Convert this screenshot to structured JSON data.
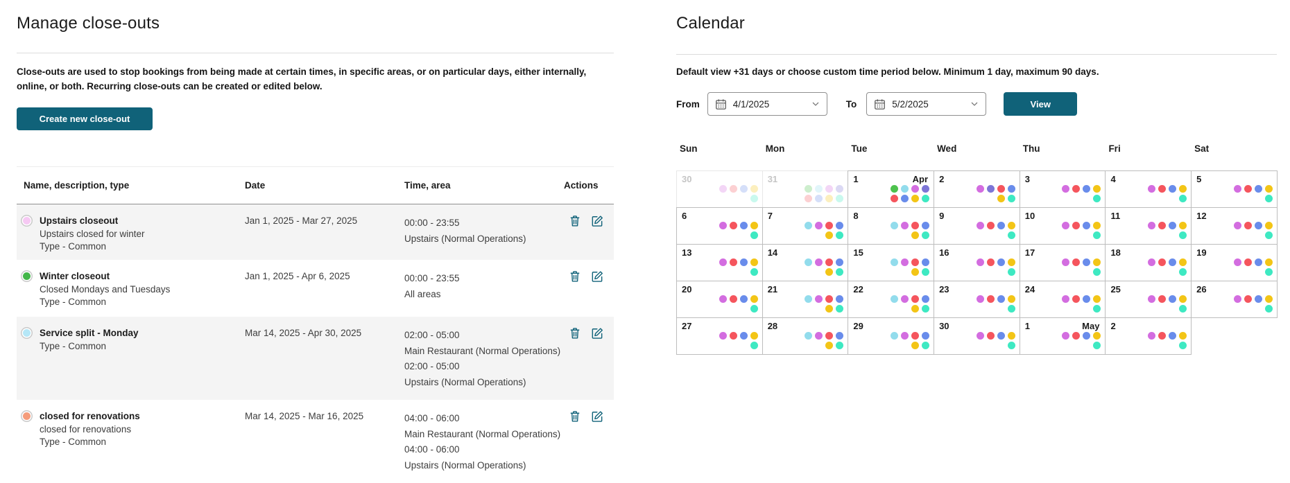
{
  "colors": {
    "accent_teal": "#106279",
    "row_stripe_gray": "#f4f4f4"
  },
  "left_panel": {
    "title": "Manage close-outs",
    "description": "Close-outs are used to stop bookings from being made at certain times, in specific areas, or on particular days, either internally, online, or both. Recurring close-outs can be created or edited below.",
    "create_button_label": "Create new close-out",
    "table": {
      "headers": [
        "Name, description, type",
        "Date",
        "Time, area",
        "Actions"
      ],
      "rows": [
        {
          "swatch_color": "#f6c9f3",
          "name": "Upstairs closeout",
          "description": "Upstairs closed for winter",
          "type": "Type - Common",
          "date": "Jan 1, 2025 - Mar 27, 2025",
          "times": [
            "00:00 - 23:55",
            "Upstairs (Normal Operations)"
          ]
        },
        {
          "swatch_color": "#43b649",
          "name": "Winter closeout",
          "description": "Closed Mondays and Tuesdays",
          "type": "Type - Common",
          "date": "Jan 1, 2025 - Apr 6, 2025",
          "times": [
            "00:00 - 23:55",
            "All areas"
          ]
        },
        {
          "swatch_color": "#b5e7f7",
          "name": "Service split - Monday",
          "description": "",
          "type": "Type - Common",
          "date": "Mar 14, 2025 - Apr 30, 2025",
          "times": [
            "02:00 - 05:00",
            "Main Restaurant (Normal Operations)",
            "02:00 - 05:00",
            "Upstairs (Normal Operations)"
          ]
        },
        {
          "swatch_color": "#f59c7b",
          "name": "closed for renovations",
          "description": "closed for renovations",
          "type": "Type - Common",
          "date": "Mar 14, 2025 - Mar 16, 2025",
          "times": [
            "04:00 - 06:00",
            "Main Restaurant (Normal Operations)",
            "04:00 - 06:00",
            "Upstairs (Normal Operations)"
          ]
        }
      ],
      "action_icons": [
        "delete",
        "edit"
      ]
    }
  },
  "calendar_panel": {
    "title": "Calendar",
    "description": "Default view +31 days or choose custom time period below. Minimum 1 day, maximum 90 days.",
    "from_label": "From",
    "from_value": "4/1/2025",
    "to_label": "To",
    "to_value": "5/2/2025",
    "view_button_label": "View",
    "weekdays": [
      "Sun",
      "Mon",
      "Tue",
      "Wed",
      "Thu",
      "Fri",
      "Sat"
    ],
    "dot_colors": {
      "green": "#4dc24d",
      "cyan": "#92dcec",
      "magenta": "#d36de0",
      "purple": "#7d75d6",
      "red": "#f5555d",
      "blue": "#698ceb",
      "yellow": "#f3c516",
      "teal": "#3ee9c2"
    },
    "weeks": [
      [
        {
          "day": "30",
          "faded": true,
          "dots": [
            [
              "magenta",
              "red",
              "blue",
              "yellow"
            ],
            [
              "teal"
            ]
          ]
        },
        {
          "day": "31",
          "faded": true,
          "dots": [
            [
              "green",
              "cyan",
              "magenta",
              "purple"
            ],
            [
              "red",
              "blue",
              "yellow",
              "teal"
            ]
          ]
        },
        {
          "day": "1",
          "month": "Apr",
          "dots": [
            [
              "green",
              "cyan",
              "magenta",
              "purple"
            ],
            [
              "red",
              "blue",
              "yellow",
              "teal"
            ]
          ]
        },
        {
          "day": "2",
          "dots": [
            [
              "magenta",
              "purple",
              "red",
              "blue"
            ],
            [
              "yellow",
              "teal"
            ]
          ]
        },
        {
          "day": "3",
          "dots": [
            [
              "magenta",
              "red",
              "blue",
              "yellow"
            ],
            [
              "teal"
            ]
          ]
        },
        {
          "day": "4",
          "dots": [
            [
              "magenta",
              "red",
              "blue",
              "yellow"
            ],
            [
              "teal"
            ]
          ]
        },
        {
          "day": "5",
          "dots": [
            [
              "magenta",
              "red",
              "blue",
              "yellow"
            ],
            [
              "teal"
            ]
          ]
        }
      ],
      [
        {
          "day": "6",
          "dots": [
            [
              "magenta",
              "red",
              "blue",
              "yellow"
            ],
            [
              "teal"
            ]
          ]
        },
        {
          "day": "7",
          "dots": [
            [
              "cyan",
              "magenta",
              "red",
              "blue"
            ],
            [
              "yellow",
              "teal"
            ]
          ]
        },
        {
          "day": "8",
          "dots": [
            [
              "cyan",
              "magenta",
              "red",
              "blue"
            ],
            [
              "yellow",
              "teal"
            ]
          ]
        },
        {
          "day": "9",
          "dots": [
            [
              "magenta",
              "red",
              "blue",
              "yellow"
            ],
            [
              "teal"
            ]
          ]
        },
        {
          "day": "10",
          "dots": [
            [
              "magenta",
              "red",
              "blue",
              "yellow"
            ],
            [
              "teal"
            ]
          ]
        },
        {
          "day": "11",
          "dots": [
            [
              "magenta",
              "red",
              "blue",
              "yellow"
            ],
            [
              "teal"
            ]
          ]
        },
        {
          "day": "12",
          "dots": [
            [
              "magenta",
              "red",
              "blue",
              "yellow"
            ],
            [
              "teal"
            ]
          ]
        }
      ],
      [
        {
          "day": "13",
          "dots": [
            [
              "magenta",
              "red",
              "blue",
              "yellow"
            ],
            [
              "teal"
            ]
          ]
        },
        {
          "day": "14",
          "dots": [
            [
              "cyan",
              "magenta",
              "red",
              "blue"
            ],
            [
              "yellow",
              "teal"
            ]
          ]
        },
        {
          "day": "15",
          "dots": [
            [
              "cyan",
              "magenta",
              "red",
              "blue"
            ],
            [
              "yellow",
              "teal"
            ]
          ]
        },
        {
          "day": "16",
          "dots": [
            [
              "magenta",
              "red",
              "blue",
              "yellow"
            ],
            [
              "teal"
            ]
          ]
        },
        {
          "day": "17",
          "dots": [
            [
              "magenta",
              "red",
              "blue",
              "yellow"
            ],
            [
              "teal"
            ]
          ]
        },
        {
          "day": "18",
          "dots": [
            [
              "magenta",
              "red",
              "blue",
              "yellow"
            ],
            [
              "teal"
            ]
          ]
        },
        {
          "day": "19",
          "dots": [
            [
              "magenta",
              "red",
              "blue",
              "yellow"
            ],
            [
              "teal"
            ]
          ]
        }
      ],
      [
        {
          "day": "20",
          "dots": [
            [
              "magenta",
              "red",
              "blue",
              "yellow"
            ],
            [
              "teal"
            ]
          ]
        },
        {
          "day": "21",
          "dots": [
            [
              "cyan",
              "magenta",
              "red",
              "blue"
            ],
            [
              "yellow",
              "teal"
            ]
          ]
        },
        {
          "day": "22",
          "dots": [
            [
              "cyan",
              "magenta",
              "red",
              "blue"
            ],
            [
              "yellow",
              "teal"
            ]
          ]
        },
        {
          "day": "23",
          "dots": [
            [
              "magenta",
              "red",
              "blue",
              "yellow"
            ],
            [
              "teal"
            ]
          ]
        },
        {
          "day": "24",
          "dots": [
            [
              "magenta",
              "red",
              "blue",
              "yellow"
            ],
            [
              "teal"
            ]
          ]
        },
        {
          "day": "25",
          "dots": [
            [
              "magenta",
              "red",
              "blue",
              "yellow"
            ],
            [
              "teal"
            ]
          ]
        },
        {
          "day": "26",
          "dots": [
            [
              "magenta",
              "red",
              "blue",
              "yellow"
            ],
            [
              "teal"
            ]
          ]
        }
      ],
      [
        {
          "day": "27",
          "dots": [
            [
              "magenta",
              "red",
              "blue",
              "yellow"
            ],
            [
              "teal"
            ]
          ]
        },
        {
          "day": "28",
          "dots": [
            [
              "cyan",
              "magenta",
              "red",
              "blue"
            ],
            [
              "yellow",
              "teal"
            ]
          ]
        },
        {
          "day": "29",
          "dots": [
            [
              "cyan",
              "magenta",
              "red",
              "blue"
            ],
            [
              "yellow",
              "teal"
            ]
          ]
        },
        {
          "day": "30",
          "dots": [
            [
              "magenta",
              "red",
              "blue",
              "yellow"
            ],
            [
              "teal"
            ]
          ]
        },
        {
          "day": "1",
          "month": "May",
          "dots": [
            [
              "magenta",
              "red",
              "blue",
              "yellow"
            ],
            [
              "teal"
            ]
          ]
        },
        {
          "day": "2",
          "dots": [
            [
              "magenta",
              "red",
              "blue",
              "yellow"
            ],
            [
              "teal"
            ]
          ]
        },
        null
      ]
    ]
  }
}
